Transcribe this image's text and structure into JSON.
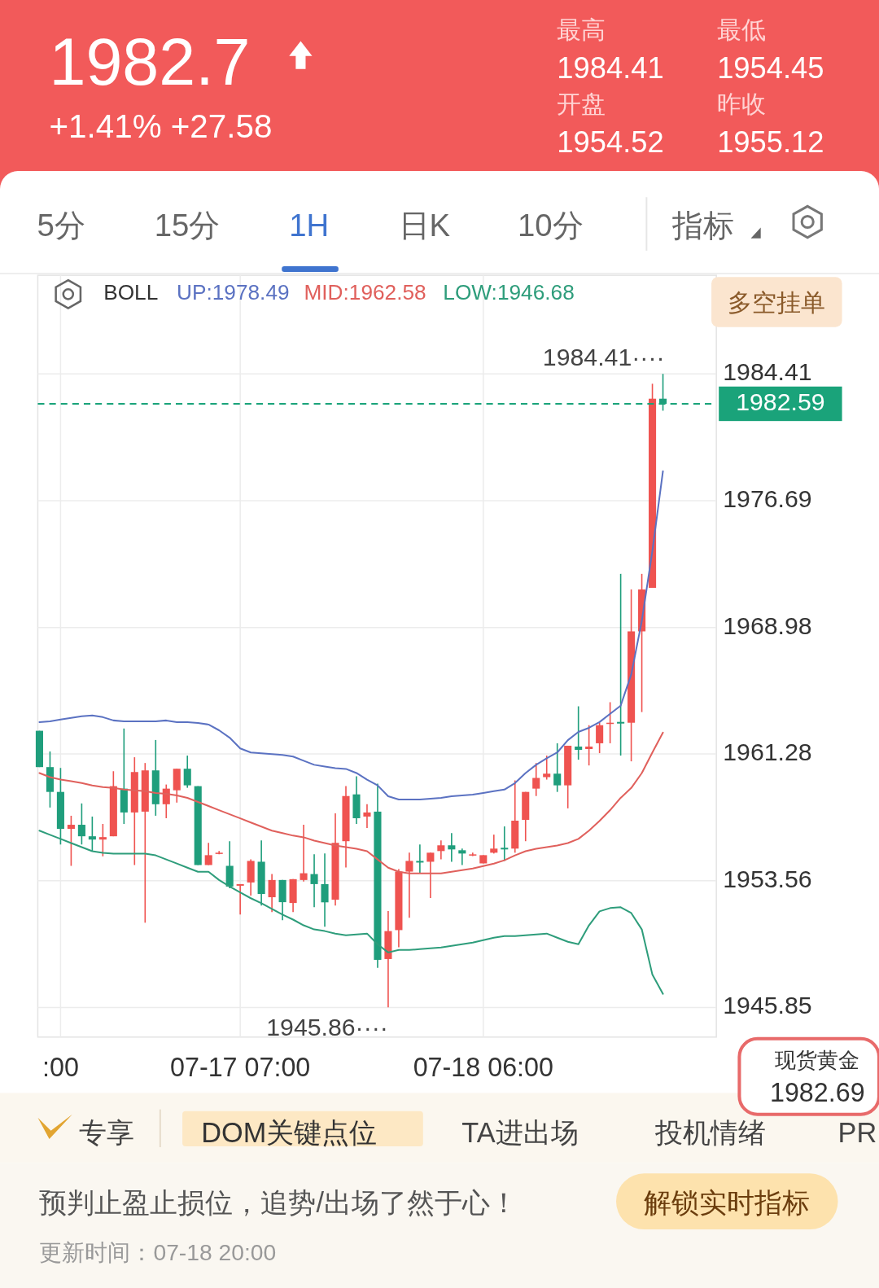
{
  "chart_data": {
    "type": "candlestick",
    "legend_title": "BOLL",
    "legend": "top",
    "grid": true,
    "categories": [
      null,
      null,
      ":00",
      null,
      null,
      null,
      null,
      null,
      null,
      null,
      null,
      null,
      null,
      null,
      null,
      null,
      null,
      null,
      null,
      "07-17 07:00",
      null,
      null,
      null,
      null,
      null,
      null,
      null,
      null,
      null,
      null,
      null,
      null,
      null,
      null,
      null,
      null,
      null,
      null,
      null,
      null,
      null,
      null,
      "07-18 06:00",
      null,
      null,
      null,
      null,
      null,
      null,
      null,
      null,
      null,
      null,
      null,
      null,
      null,
      null,
      null,
      null,
      null
    ],
    "ohlc": [
      [
        1962.69,
        1962.69,
        1960.48,
        1960.48
      ],
      [
        1960.48,
        1961.43,
        1958.02,
        1958.97
      ],
      [
        1958.97,
        1960.43,
        1955.77,
        1956.72
      ],
      [
        1956.72,
        1957.52,
        1954.47,
        1956.97
      ],
      [
        1956.97,
        1958.27,
        1955.77,
        1956.27
      ],
      [
        1956.27,
        1957.47,
        1955.37,
        1956.07
      ],
      [
        1956.07,
        1957.02,
        1955.05,
        1956.22
      ],
      [
        1956.27,
        1960.23,
        1956.27,
        1959.32
      ],
      [
        1959.17,
        1962.83,
        1957.02,
        1957.72
      ],
      [
        1957.72,
        1961.08,
        1954.52,
        1960.18
      ],
      [
        1957.77,
        1960.73,
        1951.01,
        1960.28
      ],
      [
        1960.28,
        1962.13,
        1957.52,
        1958.22
      ],
      [
        1958.22,
        1959.42,
        1957.37,
        1959.17
      ],
      [
        1959.07,
        1960.38,
        1958.32,
        1960.38
      ],
      [
        1960.38,
        1961.18,
        1959.22,
        1959.37
      ],
      [
        1959.32,
        1959.32,
        1954.52,
        1954.52
      ],
      [
        1954.52,
        1955.87,
        1954.52,
        1955.12
      ],
      [
        1955.27,
        1955.37,
        1955.17,
        1955.27
      ],
      [
        1954.47,
        1955.97,
        1953.11,
        1953.21
      ],
      [
        1953.26,
        1953.36,
        1951.51,
        1953.36
      ],
      [
        1953.46,
        1954.87,
        1952.66,
        1954.77
      ],
      [
        1954.72,
        1956.02,
        1952.06,
        1952.76
      ],
      [
        1952.56,
        1953.97,
        1951.66,
        1953.61
      ],
      [
        1953.61,
        1953.61,
        1951.16,
        1952.26
      ],
      [
        1952.21,
        1953.66,
        1951.66,
        1953.66
      ],
      [
        1953.61,
        1956.97,
        1953.51,
        1954.02
      ],
      [
        1953.97,
        1955.17,
        1951.95,
        1953.36
      ],
      [
        1953.36,
        1955.22,
        1950.76,
        1952.25
      ],
      [
        1952.41,
        1957.67,
        1952.06,
        1955.87
      ],
      [
        1955.97,
        1959.32,
        1954.37,
        1958.72
      ],
      [
        1958.82,
        1959.92,
        1957.02,
        1957.37
      ],
      [
        1957.47,
        1958.22,
        1956.77,
        1957.72
      ],
      [
        1957.77,
        1959.48,
        1948.26,
        1948.75
      ],
      [
        1948.8,
        1951.72,
        1945.86,
        1950.5
      ],
      [
        1950.56,
        1954.27,
        1949.51,
        1954.12
      ],
      [
        1954.12,
        1955.27,
        1951.31,
        1954.77
      ],
      [
        1954.77,
        1955.77,
        1954.02,
        1954.67
      ],
      [
        1954.72,
        1955.27,
        1952.51,
        1955.27
      ],
      [
        1955.37,
        1956.02,
        1954.87,
        1955.72
      ],
      [
        1955.72,
        1956.47,
        1954.72,
        1955.47
      ],
      [
        1955.42,
        1955.52,
        1954.52,
        1955.22
      ],
      [
        1955.17,
        1955.27,
        1955.07,
        1955.17
      ],
      [
        1954.62,
        1955.12,
        1954.62,
        1955.12
      ],
      [
        1955.27,
        1956.37,
        1955.22,
        1955.52
      ],
      [
        1955.57,
        1956.87,
        1954.77,
        1955.47
      ],
      [
        1955.52,
        1959.67,
        1955.27,
        1957.22
      ],
      [
        1957.27,
        1958.97,
        1955.97,
        1958.97
      ],
      [
        1959.17,
        1960.73,
        1958.72,
        1959.82
      ],
      [
        1959.87,
        1961.18,
        1959.72,
        1960.08
      ],
      [
        1960.08,
        1961.93,
        1958.97,
        1959.37
      ],
      [
        1959.37,
        1961.78,
        1957.97,
        1961.78
      ],
      [
        1961.73,
        1964.18,
        1960.93,
        1961.53
      ],
      [
        1961.58,
        1963.03,
        1960.58,
        1961.73
      ],
      [
        1961.93,
        1963.18,
        1961.33,
        1963.03
      ],
      [
        1963.13,
        1964.43,
        1961.93,
        1963.18
      ],
      [
        1963.23,
        1972.24,
        1961.18,
        1963.13
      ],
      [
        1963.18,
        1971.29,
        1960.83,
        1968.74
      ],
      [
        1968.74,
        1972.24,
        1963.83,
        1971.29
      ],
      [
        1971.39,
        1983.81,
        1971.39,
        1982.9
      ],
      [
        1982.9,
        1984.41,
        1982.17,
        1982.59
      ]
    ],
    "series": [
      {
        "type": "line",
        "name": "UP:1978.49",
        "color": "#5b72c2",
        "values": [
          1963.22,
          1963.27,
          1963.37,
          1963.47,
          1963.57,
          1963.62,
          1963.52,
          1963.32,
          1963.27,
          1963.27,
          1963.27,
          1963.27,
          1963.32,
          1963.22,
          1963.22,
          1963.17,
          1963.07,
          1962.72,
          1962.27,
          1961.62,
          1961.37,
          1961.32,
          1961.27,
          1961.22,
          1961.12,
          1960.87,
          1960.62,
          1960.52,
          1960.42,
          1960.37,
          1960.12,
          1959.72,
          1959.37,
          1958.71,
          1958.51,
          1958.51,
          1958.51,
          1958.56,
          1958.61,
          1958.71,
          1958.76,
          1958.81,
          1958.91,
          1959.01,
          1959.11,
          1959.51,
          1960.12,
          1960.62,
          1961.02,
          1961.37,
          1962.12,
          1962.62,
          1962.87,
          1963.22,
          1963.72,
          1964.22,
          1966.12,
          1969.38,
          1973.64,
          1978.49
        ]
      },
      {
        "type": "line",
        "name": "MID:1962.58",
        "color": "#e0605c",
        "values": [
          1960.12,
          1959.87,
          1959.72,
          1959.62,
          1959.51,
          1959.36,
          1959.26,
          1959.21,
          1959.11,
          1959.06,
          1959.01,
          1958.91,
          1958.86,
          1958.76,
          1958.61,
          1958.36,
          1958.11,
          1957.86,
          1957.61,
          1957.36,
          1957.11,
          1956.86,
          1956.61,
          1956.46,
          1956.31,
          1956.21,
          1956.01,
          1955.86,
          1955.71,
          1955.61,
          1955.51,
          1955.36,
          1954.86,
          1954.36,
          1954.11,
          1954.01,
          1954.01,
          1954.01,
          1954.01,
          1954.11,
          1954.21,
          1954.31,
          1954.46,
          1954.61,
          1954.81,
          1955.11,
          1955.36,
          1955.51,
          1955.61,
          1955.71,
          1955.86,
          1956.11,
          1956.61,
          1957.21,
          1957.86,
          1958.61,
          1959.21,
          1960.12,
          1961.37,
          1962.58
        ]
      },
      {
        "type": "line",
        "name": "LOW:1946.68",
        "color": "#2e9d7b",
        "values": [
          1956.61,
          1956.36,
          1956.11,
          1955.86,
          1955.61,
          1955.36,
          1955.26,
          1955.21,
          1955.21,
          1955.21,
          1955.21,
          1955.11,
          1954.86,
          1954.61,
          1954.36,
          1954.11,
          1954.11,
          1953.61,
          1953.21,
          1952.85,
          1952.5,
          1952.2,
          1951.85,
          1951.5,
          1951.2,
          1950.85,
          1950.6,
          1950.5,
          1950.35,
          1950.25,
          1950.3,
          1950.35,
          1949.7,
          1949.2,
          1949.35,
          1949.35,
          1949.4,
          1949.45,
          1949.5,
          1949.6,
          1949.7,
          1949.8,
          1949.95,
          1950.1,
          1950.2,
          1950.2,
          1950.25,
          1950.3,
          1950.35,
          1950.1,
          1949.85,
          1949.7,
          1950.85,
          1951.7,
          1951.9,
          1951.95,
          1951.6,
          1950.6,
          1947.85,
          1946.68
        ]
      }
    ],
    "ylim": [
      1944.05,
      1990.41
    ],
    "yticks": [
      1984.41,
      1976.69,
      1968.98,
      1961.28,
      1953.56,
      1945.85
    ],
    "ref_lines": [
      {
        "axis": "y",
        "value": 1982.59,
        "label": "1982.59",
        "color": "#1aa37a",
        "line_style": "dashed"
      }
    ],
    "annotations": [
      "1982.7",
      "+1.41% +27.58",
      "最高",
      "1984.41",
      "最低",
      "1954.45",
      "开盘",
      "1954.52",
      "昨收",
      "1955.12",
      "5分",
      "15分",
      "1H",
      "日K",
      "10分",
      "指标",
      "多空挂单",
      "1984.41····",
      "1945.86····",
      "现货黄金",
      "1982.69",
      "专享",
      "DOM关键点位",
      "TA进出场",
      "投机情绪",
      "PR",
      "预判止盈止损位，追势/出场了然于心！",
      "解锁实时指标",
      "更新时间：07-18 20:00"
    ]
  }
}
